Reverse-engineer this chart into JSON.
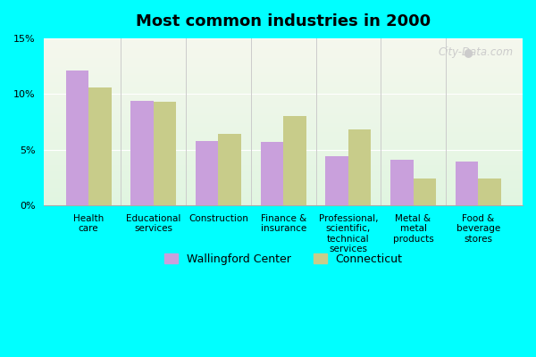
{
  "title": "Most common industries in 2000",
  "categories": [
    "Health\ncare",
    "Educational\nservices",
    "Construction",
    "Finance &\ninsurance",
    "Professional,\nscientific,\ntechnical\nservices",
    "Metal &\nmetal\nproducts",
    "Food &\nbeverage\nstores"
  ],
  "wallingford": [
    12.1,
    9.4,
    5.8,
    5.7,
    4.4,
    4.1,
    3.9
  ],
  "connecticut": [
    10.6,
    9.3,
    6.4,
    8.0,
    6.8,
    2.4,
    2.4
  ],
  "wallingford_color": "#c9a0dc",
  "connecticut_color": "#c8cc8a",
  "background_color": "#00ffff",
  "plot_bg_gradient_top": "#f5f5e8",
  "plot_bg_gradient_bottom": "#e8f5e8",
  "legend_wallingford": "Wallingford Center",
  "legend_connecticut": "Connecticut",
  "ylim": [
    0,
    15
  ],
  "yticks": [
    0,
    5,
    10,
    15
  ],
  "watermark": "City-Data.com"
}
